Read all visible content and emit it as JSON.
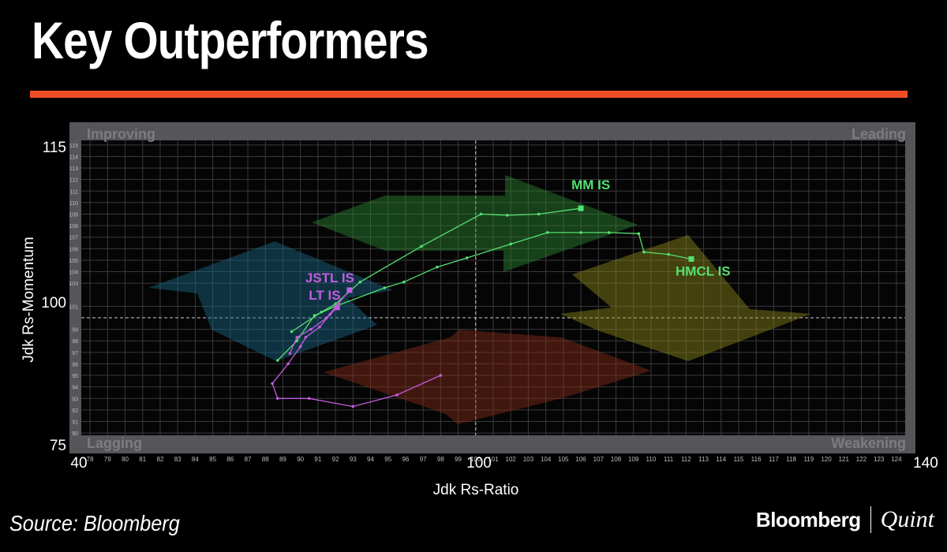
{
  "title": "Key Outperformers",
  "source": "Source: Bloomberg",
  "brand": {
    "primary": "Bloomberg",
    "secondary": "Quint"
  },
  "colors": {
    "accent_rule": "#f04e23",
    "green_series": "#55e070",
    "purple_series": "#c35ce0"
  },
  "chart_data": {
    "type": "scatter",
    "subtype": "relative-rotation-graph",
    "xlabel": "Jdk Rs-Ratio",
    "ylabel": "Jdk Rs-Momentum",
    "xlim": [
      77.5,
      124.5
    ],
    "ylim": [
      89.8,
      115.4
    ],
    "x_major_labels": [
      "40",
      "100",
      "140"
    ],
    "y_major_labels": [
      "115",
      "100",
      "75"
    ],
    "x_ticks": [
      78,
      79,
      80,
      81,
      82,
      83,
      84,
      85,
      86,
      87,
      88,
      89,
      90,
      91,
      92,
      93,
      94,
      95,
      96,
      97,
      98,
      99,
      100,
      101,
      102,
      103,
      104,
      105,
      106,
      107,
      108,
      109,
      110,
      111,
      112,
      113,
      114,
      115,
      116,
      117,
      118,
      119,
      120,
      121,
      122,
      123,
      124
    ],
    "y_ticks": [
      90,
      91,
      92,
      93,
      94,
      95,
      96,
      97,
      98,
      99,
      101,
      103,
      104,
      105,
      106,
      107,
      108,
      109,
      110,
      111,
      112,
      113,
      114,
      115
    ],
    "grid": true,
    "reference_lines": {
      "x": 100,
      "y": 100
    },
    "quadrants": [
      "Improving",
      "Leading",
      "Lagging",
      "Weakening"
    ],
    "series": [
      {
        "name": "MM IS",
        "color": "#55e070",
        "points": [
          [
            89.5,
            98.8
          ],
          [
            91.2,
            100.5
          ],
          [
            92.0,
            101.2
          ],
          [
            93.4,
            103.1
          ],
          [
            96.9,
            106.2
          ],
          [
            100.3,
            109.0
          ],
          [
            101.8,
            108.9
          ],
          [
            103.6,
            109.0
          ],
          [
            106.0,
            109.5
          ]
        ]
      },
      {
        "name": "HMCL IS",
        "color": "#55e070",
        "points": [
          [
            88.7,
            96.3
          ],
          [
            89.8,
            98.0
          ],
          [
            90.8,
            100.2
          ],
          [
            92.0,
            101.0
          ],
          [
            94.8,
            102.6
          ],
          [
            95.9,
            103.1
          ],
          [
            97.8,
            104.4
          ],
          [
            99.5,
            105.2
          ],
          [
            102.0,
            106.4
          ],
          [
            104.1,
            107.4
          ],
          [
            106.0,
            107.4
          ],
          [
            107.6,
            107.4
          ],
          [
            109.3,
            107.3
          ],
          [
            109.6,
            105.7
          ],
          [
            111.0,
            105.5
          ],
          [
            112.3,
            105.1
          ]
        ]
      },
      {
        "name": "JSTL IS",
        "color": "#c35ce0",
        "points": [
          [
            89.4,
            96.9
          ],
          [
            89.8,
            98.3
          ],
          [
            90.6,
            99.0
          ],
          [
            91.5,
            100.0
          ],
          [
            92.2,
            101.3
          ],
          [
            92.8,
            102.4
          ]
        ]
      },
      {
        "name": "LT IS",
        "color": "#c35ce0",
        "points": [
          [
            98.0,
            95.0
          ],
          [
            95.5,
            93.3
          ],
          [
            93.0,
            92.3
          ],
          [
            90.5,
            93.0
          ],
          [
            88.7,
            93.0
          ],
          [
            88.4,
            94.3
          ],
          [
            89.3,
            96.0
          ],
          [
            90.0,
            97.5
          ],
          [
            90.3,
            98.3
          ],
          [
            91.1,
            99.2
          ],
          [
            91.7,
            100.3
          ],
          [
            92.1,
            100.9
          ]
        ]
      }
    ]
  }
}
